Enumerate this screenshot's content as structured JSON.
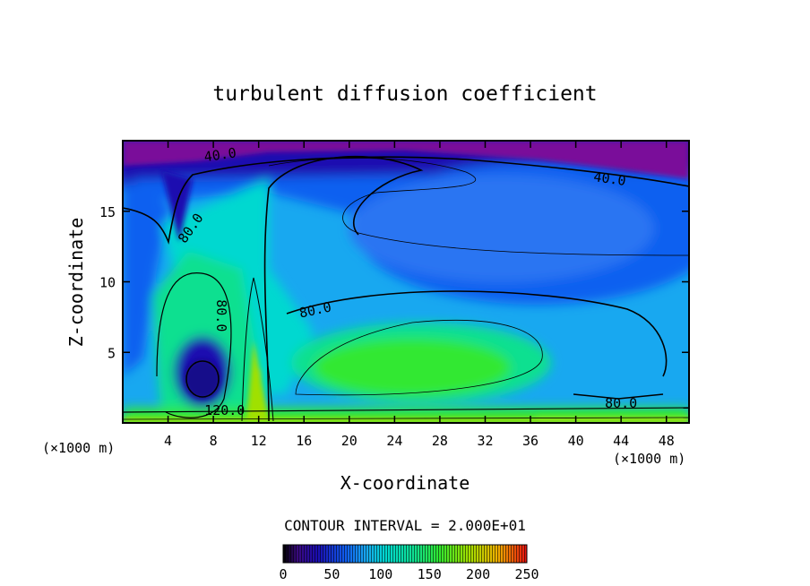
{
  "chart_data": {
    "type": "heatmap",
    "title": "turbulent diffusion coefficient",
    "xlabel": "X-coordinate",
    "ylabel": "Z-coordinate",
    "x_unit_left": "(×1000 m)",
    "x_unit_right": "(×1000 m)",
    "xlim": [
      0,
      50
    ],
    "ylim": [
      0,
      20
    ],
    "x_ticks": [
      4,
      8,
      12,
      16,
      20,
      24,
      28,
      32,
      36,
      40,
      44,
      48
    ],
    "y_ticks": [
      5,
      10,
      15
    ],
    "contour_interval_text": "CONTOUR INTERVAL = 2.000E+01",
    "contour_labels": [
      {
        "text": "40.0",
        "x": 8.6,
        "z": 19.0,
        "angle": -8
      },
      {
        "text": "40.0",
        "x": 43.0,
        "z": 17.3,
        "angle": 8
      },
      {
        "text": "80.0",
        "x": 6.0,
        "z": 13.8,
        "angle": -55
      },
      {
        "text": "80.0",
        "x": 8.7,
        "z": 7.6,
        "angle": 90
      },
      {
        "text": "80.0",
        "x": 17.0,
        "z": 8.0,
        "angle": -12
      },
      {
        "text": "80.0",
        "x": 44.0,
        "z": 1.4,
        "angle": 0
      },
      {
        "text": "120.0",
        "x": 9.0,
        "z": 0.9,
        "angle": 0
      }
    ],
    "colorbar": {
      "min": 0,
      "max": 250,
      "ticks": [
        0,
        50,
        100,
        150,
        200,
        250
      ]
    },
    "colors": {
      "v0": "#7a0a9a",
      "v30": "#1a0cb0",
      "v60": "#1060f0",
      "v80": "#18a8f0",
      "v100": "#00d8d0",
      "v130": "#10e090",
      "v160": "#30e830",
      "v190": "#a0e000",
      "v220": "#f0d000",
      "v250": "#e81010"
    }
  }
}
